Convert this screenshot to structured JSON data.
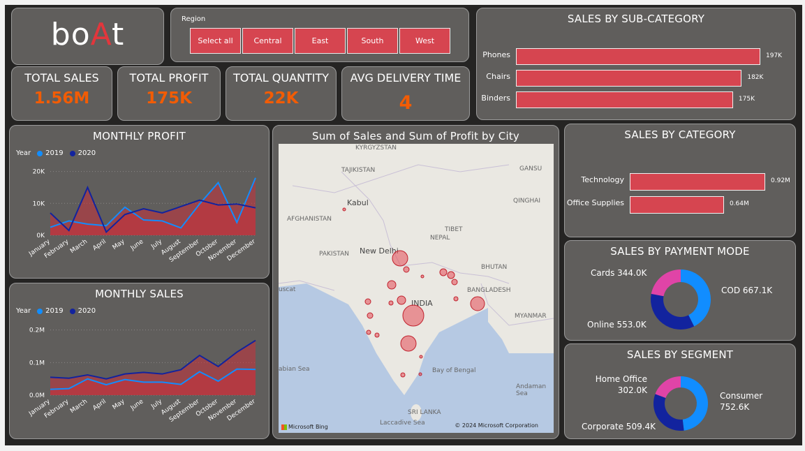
{
  "logo": {
    "pre": "bo",
    "accent": "A",
    "post": "t"
  },
  "region": {
    "title": "Region",
    "options": [
      "Select all",
      "Central",
      "East",
      "South",
      "West"
    ]
  },
  "kpis": [
    {
      "label": "TOTAL SALES",
      "value": "1.56M"
    },
    {
      "label": "TOTAL PROFIT",
      "value": "175K"
    },
    {
      "label": "TOTAL QUANTITY",
      "value": "22K"
    },
    {
      "label": "AVG DELIVERY TIME",
      "value": "4"
    }
  ],
  "sub_category": {
    "title": "SALES BY SUB-CATEGORY",
    "items": [
      {
        "label": "Phones",
        "value": 197,
        "text": "197K"
      },
      {
        "label": "Chairs",
        "value": 182,
        "text": "182K"
      },
      {
        "label": "Binders",
        "value": 175,
        "text": "175K"
      }
    ]
  },
  "category": {
    "title": "SALES BY CATEGORY",
    "items": [
      {
        "label": "Technology",
        "value": 0.92,
        "text": "0.92M"
      },
      {
        "label": "Office Supplies",
        "value": 0.64,
        "text": "0.64M"
      }
    ]
  },
  "payment": {
    "title": "SALES BY PAYMENT MODE",
    "slices": [
      {
        "label": "COD",
        "value": 667.1,
        "text": "COD 667.1K",
        "color": "#118dff"
      },
      {
        "label": "Online",
        "value": 553.0,
        "text": "Online 553.0K",
        "color": "#12239e"
      },
      {
        "label": "Cards",
        "value": 344.0,
        "text": "Cards 344.0K",
        "color": "#e044a7"
      }
    ]
  },
  "segment": {
    "title": "SALES BY SEGMENT",
    "slices": [
      {
        "label": "Consumer",
        "value": 752.6,
        "l1": "Consumer",
        "l2": "752.6K",
        "color": "#118dff"
      },
      {
        "label": "Corporate",
        "value": 509.4,
        "l1": "Corporate 509.4K",
        "l2": "",
        "color": "#12239e"
      },
      {
        "label": "Home Office",
        "value": 302.0,
        "l1": "Home Office",
        "l2": "302.0K",
        "color": "#e044a7"
      }
    ]
  },
  "legend": {
    "title": "Year",
    "y2019": "2019",
    "y2020": "2020",
    "c2019": "#118dff",
    "c2020": "#12239e"
  },
  "months": [
    "January",
    "February",
    "March",
    "April",
    "May",
    "June",
    "July",
    "August",
    "September",
    "October",
    "November",
    "December"
  ],
  "chart_data": [
    {
      "type": "area",
      "title": "MONTHLY PROFIT",
      "categories": [
        "January",
        "February",
        "March",
        "April",
        "May",
        "June",
        "July",
        "August",
        "September",
        "October",
        "November",
        "December"
      ],
      "series": [
        {
          "name": "2019",
          "values": [
            2500,
            4500,
            3500,
            3000,
            8800,
            4800,
            4500,
            2300,
            9800,
            16500,
            4000,
            18000
          ]
        },
        {
          "name": "2020",
          "values": [
            7000,
            1500,
            15000,
            1000,
            6500,
            8300,
            7000,
            9000,
            11000,
            9500,
            9800,
            8600
          ]
        }
      ],
      "yticks": [
        0,
        10000,
        20000
      ],
      "ytick_labels": [
        "0K",
        "10K",
        "20K"
      ],
      "ylim": [
        0,
        21000
      ]
    },
    {
      "type": "area",
      "title": "MONTHLY SALES",
      "categories": [
        "January",
        "February",
        "March",
        "April",
        "May",
        "June",
        "July",
        "August",
        "September",
        "October",
        "November",
        "December"
      ],
      "series": [
        {
          "name": "2019",
          "values": [
            18000,
            20000,
            50000,
            32000,
            48000,
            40000,
            40000,
            33000,
            72000,
            43000,
            80000,
            79000
          ]
        },
        {
          "name": "2020",
          "values": [
            55000,
            52000,
            62000,
            50000,
            65000,
            70000,
            65000,
            78000,
            122000,
            88000,
            132000,
            168000
          ]
        }
      ],
      "yticks": [
        0,
        100000,
        200000
      ],
      "ytick_labels": [
        "0.0M",
        "0.1M",
        "0.2M"
      ],
      "ylim": [
        0,
        210000
      ]
    }
  ],
  "map": {
    "title": "Sum of Sales and Sum of Profit by City",
    "labels": [
      "KYRGYZSTAN",
      "TAJIKISTAN",
      "GANSU",
      "Kabul",
      "QINGHAI",
      "AFGHANISTAN",
      "TIBET",
      "PAKISTAN",
      "New Delhi",
      "NEPAL",
      "BHUTAN",
      "BANGLADESH",
      "MYANMAR",
      "INDIA",
      "uscat",
      "abian Sea",
      "Bay of Bengal",
      "Andaman Sea",
      "SRI LANKA",
      "Laccadive Sea"
    ],
    "attribution": "© 2024 Microsoft Corporation",
    "bing": "Microsoft Bing"
  }
}
